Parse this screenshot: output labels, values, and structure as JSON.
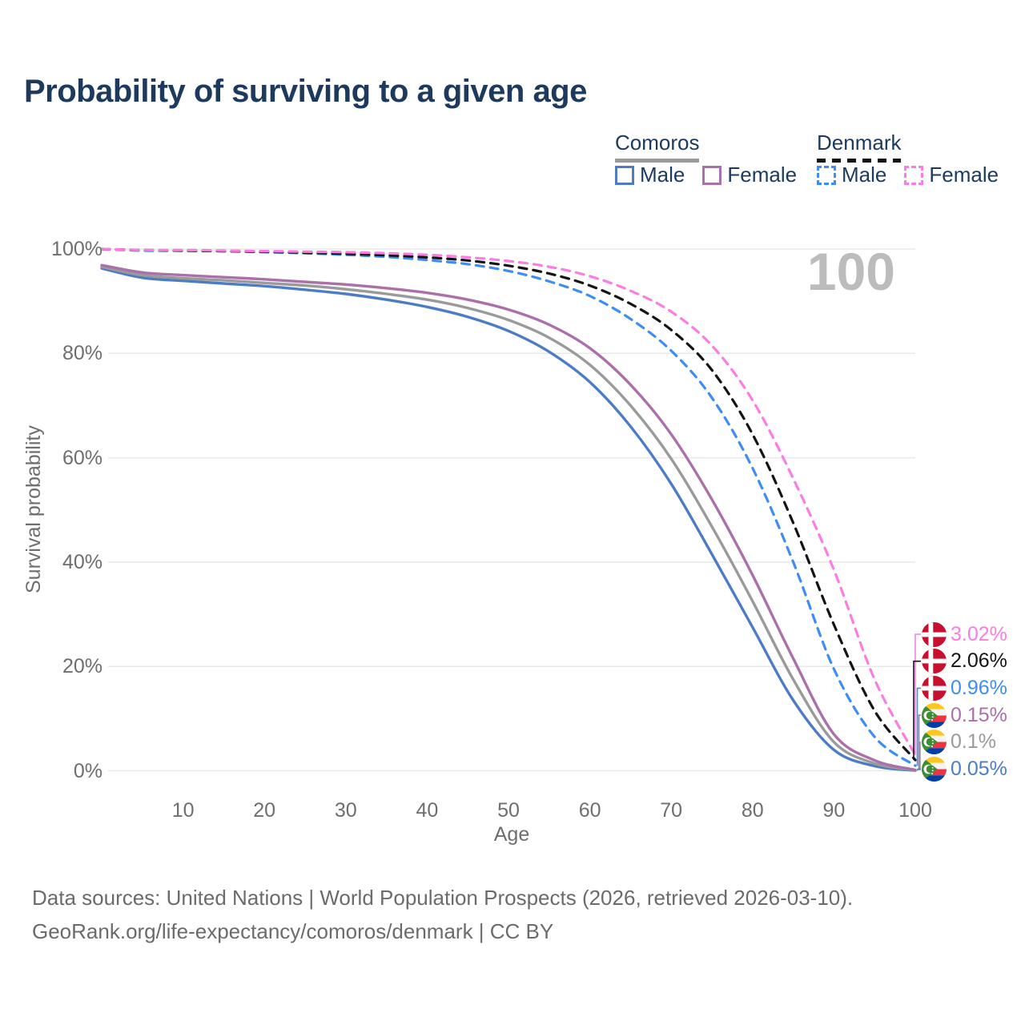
{
  "header": {
    "title": "Probability of surviving to a given age"
  },
  "legend": {
    "groups": [
      {
        "label": "Comoros",
        "underline_style": "solid",
        "underline_color": "#9a9a9a",
        "items": [
          {
            "label": "Male",
            "color": "#4d7cc7",
            "dashed": false
          },
          {
            "label": "Female",
            "color": "#ab6fa9",
            "dashed": false
          }
        ]
      },
      {
        "label": "Denmark",
        "underline_style": "dashed",
        "underline_color": "#141414",
        "items": [
          {
            "label": "Male",
            "color": "#3d8df5",
            "dashed": true
          },
          {
            "label": "Female",
            "color": "#fb7ce3",
            "dashed": true
          }
        ]
      }
    ]
  },
  "chart_data": {
    "type": "line",
    "title": "Probability of surviving to a given age",
    "xlabel": "Age",
    "ylabel": "Survival probability",
    "xlim": [
      0,
      100
    ],
    "ylim": [
      0,
      100
    ],
    "grid": "horizontal",
    "watermark": "100",
    "x_ticks": [
      10,
      20,
      30,
      40,
      50,
      60,
      70,
      80,
      90,
      100
    ],
    "y_ticks": [
      0,
      20,
      40,
      60,
      80,
      100
    ],
    "y_tick_suffix": "%",
    "ages": [
      0,
      5,
      10,
      15,
      20,
      25,
      30,
      35,
      40,
      45,
      50,
      55,
      60,
      65,
      70,
      75,
      80,
      85,
      90,
      95,
      100
    ],
    "series": [
      {
        "id": "comoros-male",
        "country": "Comoros",
        "sex": "Male",
        "color": "#4d7cc7",
        "dashed": false,
        "flag": "comoros",
        "end_label": "0.05%",
        "values": [
          96.3,
          94.5,
          93.9,
          93.4,
          92.9,
          92.2,
          91.4,
          90.3,
          88.9,
          87.0,
          84.3,
          80.3,
          74.5,
          66.0,
          55.0,
          41.5,
          27.5,
          13.5,
          4.0,
          0.9,
          0.05
        ]
      },
      {
        "id": "comoros-combined",
        "country": "Comoros",
        "sex": "Combined",
        "color": "#9a9a9a",
        "dashed": false,
        "flag": "comoros",
        "end_label": "0.1%",
        "values": [
          96.6,
          95.0,
          94.4,
          94.0,
          93.5,
          93.0,
          92.3,
          91.4,
          90.3,
          88.7,
          86.4,
          83.0,
          77.8,
          70.0,
          59.8,
          46.8,
          32.5,
          17.5,
          5.5,
          1.4,
          0.1
        ]
      },
      {
        "id": "comoros-female",
        "country": "Comoros",
        "sex": "Female",
        "color": "#ab6fa9",
        "dashed": false,
        "flag": "comoros",
        "end_label": "0.15%",
        "values": [
          96.9,
          95.5,
          95.0,
          94.6,
          94.2,
          93.7,
          93.2,
          92.5,
          91.6,
          90.3,
          88.4,
          85.5,
          81.0,
          74.0,
          64.5,
          52.0,
          37.5,
          21.5,
          7.0,
          2.0,
          0.15
        ]
      },
      {
        "id": "denmark-male",
        "country": "Denmark",
        "sex": "Male",
        "color": "#3d8df5",
        "dashed": true,
        "flag": "denmark",
        "end_label": "0.96%",
        "values": [
          100,
          99.7,
          99.7,
          99.6,
          99.4,
          99.2,
          98.9,
          98.5,
          97.9,
          97.1,
          95.8,
          93.8,
          91.0,
          86.6,
          80.5,
          71.5,
          58.0,
          40.0,
          19.5,
          6.5,
          0.96
        ]
      },
      {
        "id": "denmark-combined",
        "country": "Denmark",
        "sex": "Combined",
        "color": "#141414",
        "dashed": true,
        "flag": "denmark",
        "end_label": "2.06%",
        "values": [
          100,
          99.8,
          99.7,
          99.6,
          99.5,
          99.3,
          99.1,
          98.8,
          98.4,
          97.8,
          96.8,
          95.3,
          93.0,
          89.5,
          84.5,
          76.8,
          64.5,
          47.5,
          28.0,
          11.5,
          2.06
        ]
      },
      {
        "id": "denmark-female",
        "country": "Denmark",
        "sex": "Female",
        "color": "#fb7ce3",
        "dashed": true,
        "flag": "denmark",
        "end_label": "3.02%",
        "values": [
          100,
          99.8,
          99.8,
          99.7,
          99.6,
          99.5,
          99.4,
          99.2,
          98.9,
          98.4,
          97.7,
          96.6,
          94.8,
          92.0,
          88.0,
          81.5,
          71.0,
          56.0,
          38.5,
          17.5,
          3.02
        ]
      }
    ]
  },
  "footer": {
    "line1": "Data sources: United Nations | World Population Prospects (2026, retrieved 2026-03-10).",
    "line2": "GeoRank.org/life-expectancy/comoros/denmark | CC BY"
  }
}
